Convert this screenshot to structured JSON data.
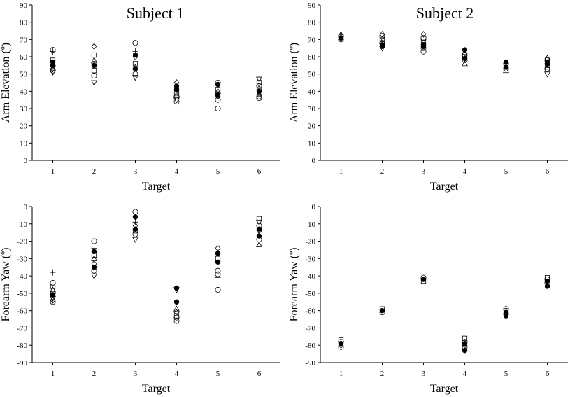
{
  "chart_data": [
    {
      "type": "scatter",
      "title": "Subject 1",
      "xlabel": "Target",
      "ylabel": "Arm Elevation (º)",
      "xlim": [
        0.5,
        6.5
      ],
      "ylim": [
        0,
        90
      ],
      "xticks": [
        "1",
        "2",
        "3",
        "4",
        "5",
        "6"
      ],
      "yticks": [
        "0",
        "10",
        "20",
        "30",
        "40",
        "50",
        "60",
        "70",
        "80",
        "90"
      ],
      "grid": false,
      "points": [
        {
          "x": 1,
          "y": 64,
          "m": "circle"
        },
        {
          "x": 1,
          "y": 63,
          "m": "plus"
        },
        {
          "x": 1,
          "y": 58,
          "m": "square"
        },
        {
          "x": 1,
          "y": 57,
          "m": "dot"
        },
        {
          "x": 1,
          "y": 56,
          "m": "tri-up"
        },
        {
          "x": 1,
          "y": 55,
          "m": "dot"
        },
        {
          "x": 1,
          "y": 53,
          "m": "diamond"
        },
        {
          "x": 1,
          "y": 52,
          "m": "circle"
        },
        {
          "x": 1,
          "y": 51,
          "m": "tri-down"
        },
        {
          "x": 2,
          "y": 66,
          "m": "diamond"
        },
        {
          "x": 2,
          "y": 61,
          "m": "square"
        },
        {
          "x": 2,
          "y": 58,
          "m": "tri-up"
        },
        {
          "x": 2,
          "y": 56,
          "m": "circle"
        },
        {
          "x": 2,
          "y": 55,
          "m": "dot"
        },
        {
          "x": 2,
          "y": 54,
          "m": "plus"
        },
        {
          "x": 2,
          "y": 52,
          "m": "square"
        },
        {
          "x": 2,
          "y": 49,
          "m": "circle"
        },
        {
          "x": 2,
          "y": 45,
          "m": "tri-down"
        },
        {
          "x": 3,
          "y": 68,
          "m": "circle"
        },
        {
          "x": 3,
          "y": 63,
          "m": "plus"
        },
        {
          "x": 3,
          "y": 61,
          "m": "dot"
        },
        {
          "x": 3,
          "y": 60,
          "m": "diamond"
        },
        {
          "x": 3,
          "y": 56,
          "m": "square"
        },
        {
          "x": 3,
          "y": 54,
          "m": "tri-up"
        },
        {
          "x": 3,
          "y": 53,
          "m": "dot"
        },
        {
          "x": 3,
          "y": 50,
          "m": "circle"
        },
        {
          "x": 3,
          "y": 48,
          "m": "tri-down"
        },
        {
          "x": 4,
          "y": 45,
          "m": "diamond"
        },
        {
          "x": 4,
          "y": 43,
          "m": "dot"
        },
        {
          "x": 4,
          "y": 41,
          "m": "dot"
        },
        {
          "x": 4,
          "y": 39,
          "m": "square"
        },
        {
          "x": 4,
          "y": 38,
          "m": "tri-up"
        },
        {
          "x": 4,
          "y": 37,
          "m": "circle"
        },
        {
          "x": 4,
          "y": 35,
          "m": "tri-down"
        },
        {
          "x": 4,
          "y": 34,
          "m": "circle"
        },
        {
          "x": 5,
          "y": 45,
          "m": "circle"
        },
        {
          "x": 5,
          "y": 44,
          "m": "dot"
        },
        {
          "x": 5,
          "y": 41,
          "m": "square"
        },
        {
          "x": 5,
          "y": 40,
          "m": "tri-up"
        },
        {
          "x": 5,
          "y": 38,
          "m": "dot"
        },
        {
          "x": 5,
          "y": 37,
          "m": "diamond"
        },
        {
          "x": 5,
          "y": 35,
          "m": "circle"
        },
        {
          "x": 5,
          "y": 30,
          "m": "circle"
        },
        {
          "x": 6,
          "y": 47,
          "m": "tri-down"
        },
        {
          "x": 6,
          "y": 45,
          "m": "square"
        },
        {
          "x": 6,
          "y": 43,
          "m": "circle"
        },
        {
          "x": 6,
          "y": 42,
          "m": "tri-up"
        },
        {
          "x": 6,
          "y": 40,
          "m": "dot"
        },
        {
          "x": 6,
          "y": 38,
          "m": "diamond"
        },
        {
          "x": 6,
          "y": 37,
          "m": "circle"
        },
        {
          "x": 6,
          "y": 36,
          "m": "circle"
        }
      ]
    },
    {
      "type": "scatter",
      "title": "Subject 2",
      "xlabel": "Target",
      "ylabel": "Arm Elevation (º)",
      "xlim": [
        0.5,
        6.5
      ],
      "ylim": [
        0,
        90
      ],
      "xticks": [
        "1",
        "2",
        "3",
        "4",
        "5",
        "6"
      ],
      "yticks": [
        "0",
        "10",
        "20",
        "30",
        "40",
        "50",
        "60",
        "70",
        "80",
        "90"
      ],
      "grid": false,
      "points": [
        {
          "x": 1,
          "y": 73,
          "m": "tri-up"
        },
        {
          "x": 1,
          "y": 72,
          "m": "circle"
        },
        {
          "x": 1,
          "y": 71.5,
          "m": "square"
        },
        {
          "x": 1,
          "y": 71,
          "m": "dot"
        },
        {
          "x": 1,
          "y": 70.5,
          "m": "diamond"
        },
        {
          "x": 1,
          "y": 70,
          "m": "circle"
        },
        {
          "x": 2,
          "y": 73,
          "m": "diamond"
        },
        {
          "x": 2,
          "y": 72,
          "m": "circle"
        },
        {
          "x": 2,
          "y": 70,
          "m": "square"
        },
        {
          "x": 2,
          "y": 69,
          "m": "tri-up"
        },
        {
          "x": 2,
          "y": 68,
          "m": "circle"
        },
        {
          "x": 2,
          "y": 67,
          "m": "dot"
        },
        {
          "x": 2,
          "y": 66,
          "m": "dot"
        },
        {
          "x": 2,
          "y": 65,
          "m": "tri-down"
        },
        {
          "x": 3,
          "y": 73,
          "m": "diamond"
        },
        {
          "x": 3,
          "y": 71,
          "m": "circle"
        },
        {
          "x": 3,
          "y": 69,
          "m": "tri-down"
        },
        {
          "x": 3,
          "y": 68,
          "m": "square"
        },
        {
          "x": 3,
          "y": 67,
          "m": "dot"
        },
        {
          "x": 3,
          "y": 66,
          "m": "dot"
        },
        {
          "x": 3,
          "y": 65,
          "m": "circle"
        },
        {
          "x": 3,
          "y": 63,
          "m": "circle"
        },
        {
          "x": 4,
          "y": 64,
          "m": "dot"
        },
        {
          "x": 4,
          "y": 62,
          "m": "diamond"
        },
        {
          "x": 4,
          "y": 61,
          "m": "circle"
        },
        {
          "x": 4,
          "y": 60,
          "m": "square"
        },
        {
          "x": 4,
          "y": 59,
          "m": "dot"
        },
        {
          "x": 4,
          "y": 58,
          "m": "circle"
        },
        {
          "x": 4,
          "y": 56,
          "m": "tri-up"
        },
        {
          "x": 5,
          "y": 57,
          "m": "dot"
        },
        {
          "x": 5,
          "y": 56,
          "m": "circle"
        },
        {
          "x": 5,
          "y": 55,
          "m": "square"
        },
        {
          "x": 5,
          "y": 54,
          "m": "dot"
        },
        {
          "x": 5,
          "y": 53,
          "m": "circle"
        },
        {
          "x": 5,
          "y": 52,
          "m": "tri-up"
        },
        {
          "x": 6,
          "y": 59,
          "m": "diamond"
        },
        {
          "x": 6,
          "y": 58,
          "m": "circle"
        },
        {
          "x": 6,
          "y": 57,
          "m": "dot"
        },
        {
          "x": 6,
          "y": 56,
          "m": "dot"
        },
        {
          "x": 6,
          "y": 55,
          "m": "square"
        },
        {
          "x": 6,
          "y": 54,
          "m": "tri-up"
        },
        {
          "x": 6,
          "y": 53,
          "m": "circle"
        },
        {
          "x": 6,
          "y": 50,
          "m": "tri-down"
        }
      ]
    },
    {
      "type": "scatter",
      "title": "",
      "xlabel": "Target",
      "ylabel": "Forearm Yaw (º)",
      "xlim": [
        0.5,
        6.5
      ],
      "ylim": [
        -90,
        0
      ],
      "xticks": [
        "1",
        "2",
        "3",
        "4",
        "5",
        "6"
      ],
      "yticks": [
        "0",
        "-10",
        "-20",
        "-30",
        "-40",
        "-50",
        "-60",
        "-70",
        "-80",
        "-90"
      ],
      "grid": false,
      "points": [
        {
          "x": 1,
          "y": -38,
          "m": "plus"
        },
        {
          "x": 1,
          "y": -44,
          "m": "circle"
        },
        {
          "x": 1,
          "y": -46,
          "m": "square"
        },
        {
          "x": 1,
          "y": -48,
          "m": "tri-up"
        },
        {
          "x": 1,
          "y": -50,
          "m": "circle"
        },
        {
          "x": 1,
          "y": -51,
          "m": "dot"
        },
        {
          "x": 1,
          "y": -53,
          "m": "tri-down"
        },
        {
          "x": 1,
          "y": -54,
          "m": "diamond"
        },
        {
          "x": 1,
          "y": -55,
          "m": "circle"
        },
        {
          "x": 2,
          "y": -20,
          "m": "circle"
        },
        {
          "x": 2,
          "y": -24,
          "m": "plus"
        },
        {
          "x": 2,
          "y": -26,
          "m": "dot"
        },
        {
          "x": 2,
          "y": -28,
          "m": "square"
        },
        {
          "x": 2,
          "y": -30,
          "m": "tri-up"
        },
        {
          "x": 2,
          "y": -33,
          "m": "diamond"
        },
        {
          "x": 2,
          "y": -35,
          "m": "dot"
        },
        {
          "x": 2,
          "y": -37,
          "m": "circle"
        },
        {
          "x": 2,
          "y": -40,
          "m": "tri-down"
        },
        {
          "x": 3,
          "y": -3,
          "m": "circle"
        },
        {
          "x": 3,
          "y": -6,
          "m": "dot"
        },
        {
          "x": 3,
          "y": -9,
          "m": "plus"
        },
        {
          "x": 3,
          "y": -11,
          "m": "diamond"
        },
        {
          "x": 3,
          "y": -13,
          "m": "dot"
        },
        {
          "x": 3,
          "y": -14,
          "m": "square"
        },
        {
          "x": 3,
          "y": -16,
          "m": "circle"
        },
        {
          "x": 3,
          "y": -19,
          "m": "tri-down"
        },
        {
          "x": 4,
          "y": -47,
          "m": "dot"
        },
        {
          "x": 4,
          "y": -48,
          "m": "tri-down"
        },
        {
          "x": 4,
          "y": -55,
          "m": "dot"
        },
        {
          "x": 4,
          "y": -59,
          "m": "tri-up"
        },
        {
          "x": 4,
          "y": -61,
          "m": "diamond"
        },
        {
          "x": 4,
          "y": -63,
          "m": "square"
        },
        {
          "x": 4,
          "y": -64,
          "m": "circle"
        },
        {
          "x": 4,
          "y": -66,
          "m": "circle"
        },
        {
          "x": 5,
          "y": -24,
          "m": "diamond"
        },
        {
          "x": 5,
          "y": -27,
          "m": "dot"
        },
        {
          "x": 5,
          "y": -30,
          "m": "square"
        },
        {
          "x": 5,
          "y": -32,
          "m": "dot"
        },
        {
          "x": 5,
          "y": -37,
          "m": "circle"
        },
        {
          "x": 5,
          "y": -39,
          "m": "circle"
        },
        {
          "x": 5,
          "y": -41,
          "m": "plus"
        },
        {
          "x": 5,
          "y": -48,
          "m": "circle"
        },
        {
          "x": 6,
          "y": -7,
          "m": "square"
        },
        {
          "x": 6,
          "y": -9,
          "m": "tri-down"
        },
        {
          "x": 6,
          "y": -11,
          "m": "circle"
        },
        {
          "x": 6,
          "y": -13,
          "m": "dot"
        },
        {
          "x": 6,
          "y": -14,
          "m": "diamond"
        },
        {
          "x": 6,
          "y": -17,
          "m": "dot"
        },
        {
          "x": 6,
          "y": -19,
          "m": "circle"
        },
        {
          "x": 6,
          "y": -22,
          "m": "tri-up"
        }
      ]
    },
    {
      "type": "scatter",
      "title": "",
      "xlabel": "Target",
      "ylabel": "Forearm Yaw (º)",
      "xlim": [
        0.5,
        6.5
      ],
      "ylim": [
        -90,
        0
      ],
      "xticks": [
        "1",
        "2",
        "3",
        "4",
        "5",
        "6"
      ],
      "yticks": [
        "0",
        "-10",
        "-20",
        "-30",
        "-40",
        "-50",
        "-60",
        "-70",
        "-80",
        "-90"
      ],
      "grid": false,
      "points": [
        {
          "x": 1,
          "y": -77,
          "m": "square"
        },
        {
          "x": 1,
          "y": -78,
          "m": "circle"
        },
        {
          "x": 1,
          "y": -79,
          "m": "dot"
        },
        {
          "x": 1,
          "y": -80,
          "m": "diamond"
        },
        {
          "x": 1,
          "y": -81,
          "m": "circle"
        },
        {
          "x": 2,
          "y": -59,
          "m": "square"
        },
        {
          "x": 2,
          "y": -60,
          "m": "dot"
        },
        {
          "x": 2,
          "y": -61,
          "m": "circle"
        },
        {
          "x": 3,
          "y": -41,
          "m": "circle"
        },
        {
          "x": 3,
          "y": -42,
          "m": "dot"
        },
        {
          "x": 3,
          "y": -43,
          "m": "square"
        },
        {
          "x": 4,
          "y": -76,
          "m": "square"
        },
        {
          "x": 4,
          "y": -78,
          "m": "circle"
        },
        {
          "x": 4,
          "y": -79,
          "m": "dot"
        },
        {
          "x": 4,
          "y": -80,
          "m": "diamond"
        },
        {
          "x": 4,
          "y": -81,
          "m": "circle"
        },
        {
          "x": 4,
          "y": -83,
          "m": "dot"
        },
        {
          "x": 5,
          "y": -59,
          "m": "circle"
        },
        {
          "x": 5,
          "y": -60,
          "m": "square"
        },
        {
          "x": 5,
          "y": -61,
          "m": "dot"
        },
        {
          "x": 5,
          "y": -62,
          "m": "circle"
        },
        {
          "x": 5,
          "y": -63,
          "m": "dot"
        },
        {
          "x": 6,
          "y": -41,
          "m": "square"
        },
        {
          "x": 6,
          "y": -42,
          "m": "circle"
        },
        {
          "x": 6,
          "y": -43,
          "m": "dot"
        },
        {
          "x": 6,
          "y": -44,
          "m": "circle"
        },
        {
          "x": 6,
          "y": -46,
          "m": "dot"
        }
      ]
    }
  ]
}
